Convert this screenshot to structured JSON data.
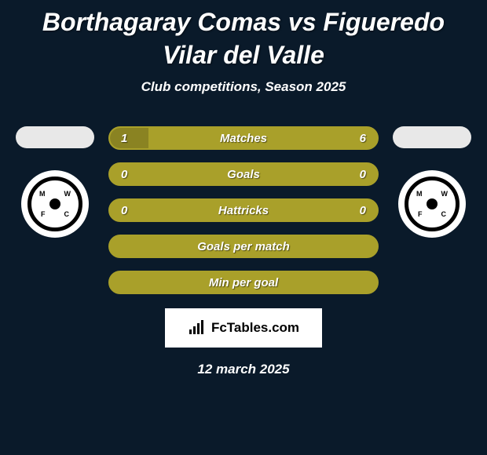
{
  "title": "Borthagaray Comas vs Figueredo Vilar del Valle",
  "subtitle": "Club competitions, Season 2025",
  "date": "12 march 2025",
  "logo_text": "FcTables.com",
  "background_color": "#0a1a2a",
  "bar_border_color": "#a9a02a",
  "bar_fill_color": "#a9a02a",
  "bar_empty_bg": "#0a1a2a",
  "stats": [
    {
      "label": "Matches",
      "left_value": "1",
      "right_value": "6",
      "left_pct": 14.3,
      "right_pct": 85.7,
      "show_values": true
    },
    {
      "label": "Goals",
      "left_value": "0",
      "right_value": "0",
      "left_pct": 0,
      "right_pct": 0,
      "show_values": true
    },
    {
      "label": "Hattricks",
      "left_value": "0",
      "right_value": "0",
      "left_pct": 0,
      "right_pct": 0,
      "show_values": true
    },
    {
      "label": "Goals per match",
      "left_value": "",
      "right_value": "",
      "left_pct": 0,
      "right_pct": 0,
      "show_values": false
    },
    {
      "label": "Min per goal",
      "left_value": "",
      "right_value": "",
      "left_pct": 0,
      "right_pct": 0,
      "show_values": false
    }
  ],
  "club_badge": {
    "letters": [
      "M",
      "W",
      "F",
      "C"
    ]
  }
}
